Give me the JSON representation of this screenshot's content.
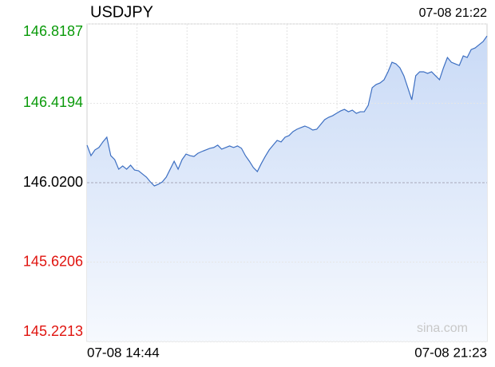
{
  "chart_data": {
    "type": "line",
    "title": "USDJPY",
    "timestamp": "07-08 21:22",
    "watermark": "sina.com",
    "categories": [
      "07-08 14:44",
      null,
      null,
      null,
      null,
      null,
      null,
      null,
      null,
      null,
      null,
      null,
      null,
      null,
      null,
      null,
      null,
      null,
      null,
      null,
      null,
      null,
      null,
      null,
      null,
      null,
      null,
      null,
      null,
      null,
      null,
      null,
      null,
      null,
      null,
      null,
      null,
      null,
      null,
      null,
      null,
      null,
      null,
      null,
      null,
      null,
      null,
      null,
      null,
      null,
      null,
      null,
      null,
      null,
      null,
      null,
      null,
      null,
      null,
      null,
      null,
      null,
      null,
      null,
      null,
      null,
      null,
      null,
      null,
      null,
      null,
      null,
      null,
      null,
      null,
      null,
      null,
      null,
      null,
      null,
      null,
      null,
      null,
      null,
      null,
      null,
      null,
      null,
      null,
      null,
      null,
      null,
      null,
      null,
      null,
      null,
      null,
      null,
      null,
      null,
      null,
      "07-08 21:23"
    ],
    "values": [
      146.209,
      146.156,
      146.185,
      146.197,
      146.225,
      146.249,
      146.156,
      146.136,
      146.088,
      146.104,
      146.088,
      146.108,
      146.084,
      146.08,
      146.064,
      146.048,
      146.024,
      146.004,
      146.012,
      146.024,
      146.048,
      146.088,
      146.128,
      146.088,
      146.136,
      146.164,
      146.156,
      146.152,
      146.168,
      146.177,
      146.185,
      146.193,
      146.197,
      146.209,
      146.189,
      146.197,
      146.205,
      146.197,
      146.205,
      146.193,
      146.156,
      146.128,
      146.096,
      146.076,
      146.116,
      146.152,
      146.185,
      146.209,
      146.233,
      146.225,
      146.249,
      146.257,
      146.277,
      146.289,
      146.297,
      146.305,
      146.297,
      146.285,
      146.289,
      146.313,
      146.337,
      146.349,
      146.357,
      146.369,
      146.381,
      146.389,
      146.377,
      146.385,
      146.369,
      146.377,
      146.377,
      146.409,
      146.498,
      146.514,
      146.522,
      146.538,
      146.578,
      146.626,
      146.618,
      146.598,
      146.558,
      146.498,
      146.437,
      146.558,
      146.578,
      146.578,
      146.57,
      146.578,
      146.558,
      146.538,
      146.598,
      146.65,
      146.626,
      146.618,
      146.61,
      146.658,
      146.65,
      146.69,
      146.698,
      146.714,
      146.73,
      146.758
    ],
    "color": "#3d6fc2",
    "ylim": [
      145.2213,
      146.8187
    ],
    "yticks": [
      146.8187,
      146.4194,
      {
        "value": 146.02,
        "label": "146.0200"
      },
      145.6206,
      145.2213
    ],
    "ytick_colors": [
      "#0a9a0a",
      "#0a9a0a",
      "#000000",
      "#e0140f",
      "#e0140f"
    ],
    "grid": true
  }
}
